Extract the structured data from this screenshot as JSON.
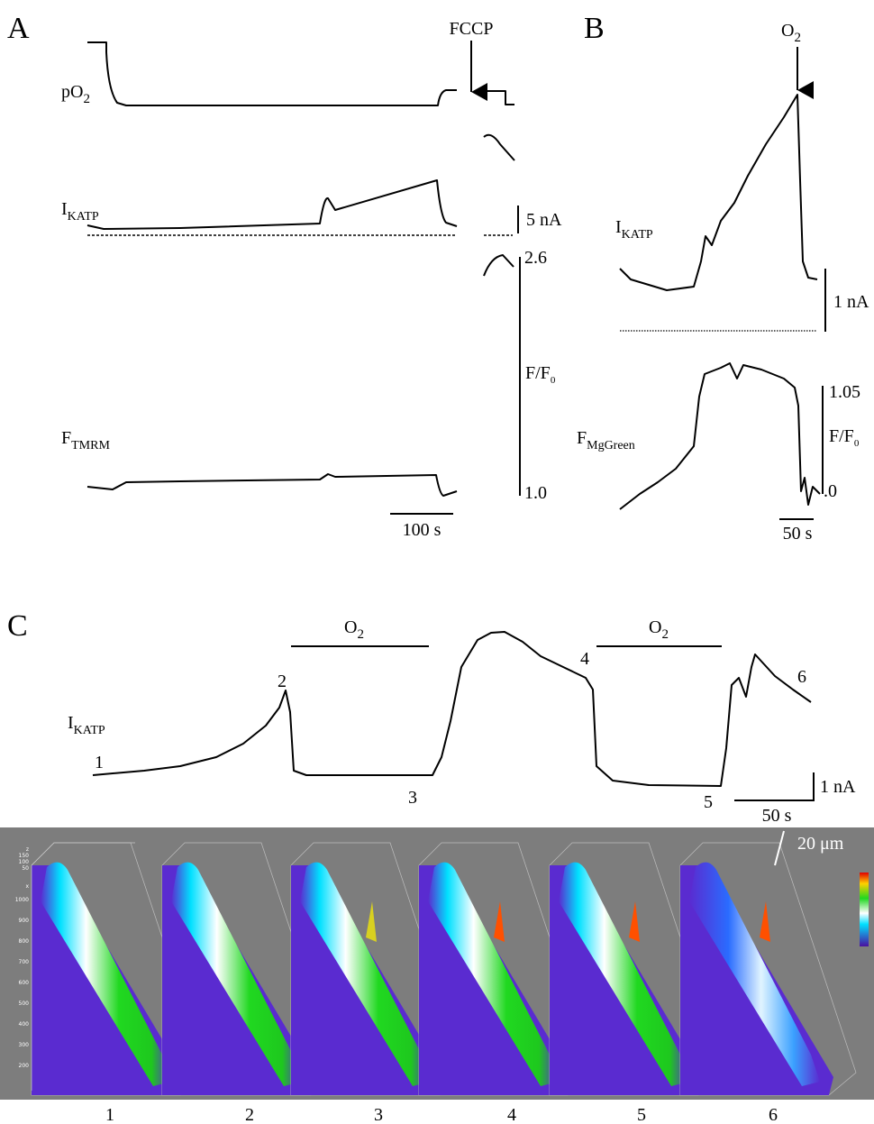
{
  "panel_a": {
    "label": "A",
    "po2": {
      "main": "pO",
      "sub": "2"
    },
    "fccp": "FCCP",
    "ikatp": {
      "main": "I",
      "sub": "KATP"
    },
    "current_scale": "5 nA",
    "f_max": "2.6",
    "f_axis": {
      "main": "F/F",
      "sub": "0"
    },
    "f_min": "1.0",
    "ftmrm": {
      "main": "F",
      "sub": "TMRM"
    },
    "time_scale": "100 s"
  },
  "panel_b": {
    "label": "B",
    "o2": {
      "main": "O",
      "sub": "2"
    },
    "ikatp": {
      "main": "I",
      "sub": "KATP"
    },
    "current_scale": "1 nA",
    "fmggreen": {
      "main": "F",
      "sub": "MgGreen"
    },
    "f_max": "1.05",
    "f_axis": {
      "main": "F/F",
      "sub": "0"
    },
    "f_min": ".0",
    "time_scale": "50 s"
  },
  "panel_c": {
    "label": "C",
    "o2_periods": [
      {
        "main": "O",
        "sub": "2"
      },
      {
        "main": "O",
        "sub": "2"
      }
    ],
    "ikatp": {
      "main": "I",
      "sub": "KATP"
    },
    "points": [
      "1",
      "2",
      "3",
      "4",
      "5",
      "6"
    ],
    "current_scale": "1 nA",
    "time_scale": "50 s",
    "image_scale": "20 μm",
    "image_axis": [
      "z",
      "150",
      "100",
      "50",
      "x",
      "1000",
      "900",
      "800",
      "700",
      "600",
      "500",
      "400",
      "300",
      "200"
    ],
    "image_labels": [
      "1",
      "2",
      "3",
      "4",
      "5",
      "6"
    ]
  }
}
